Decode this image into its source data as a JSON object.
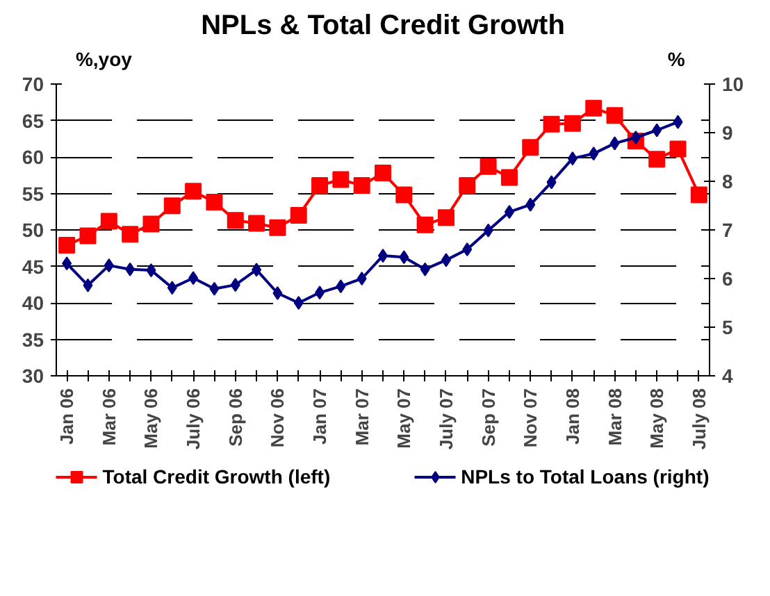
{
  "chart_data": {
    "type": "line",
    "title": "NPLs & Total Credit Growth",
    "ylabel": "%,yoy",
    "y2label": "%",
    "categories": [
      "Jan 06",
      null,
      "Mar 06",
      null,
      "May 06",
      null,
      "July 06",
      null,
      "Sep 06",
      null,
      "Nov 06",
      null,
      "Jan 07",
      null,
      "Mar 07",
      null,
      "May 07",
      null,
      "July 07",
      null,
      "Sep 07",
      null,
      "Nov 07",
      null,
      "Jan 08",
      null,
      "Mar 08",
      null,
      "May 08",
      null,
      "July 08"
    ],
    "series": [
      {
        "name": "Total Credit Growth (left)",
        "color": "#ff0000",
        "marker": "square",
        "values": [
          47.9,
          49.2,
          51.2,
          49.4,
          50.8,
          53.3,
          55.3,
          53.8,
          51.3,
          50.9,
          50.3,
          52.0,
          56.1,
          56.9,
          56.1,
          57.8,
          54.8,
          50.7,
          51.7,
          56.1,
          58.7,
          57.2,
          61.3,
          64.5,
          64.6,
          66.7,
          65.7,
          62.2,
          59.7,
          61.1,
          54.8
        ]
      },
      {
        "name": "NPLs to Total Loans (right)",
        "color": "#000080",
        "marker": "diamond",
        "axis": "y2",
        "values": [
          6.31,
          5.86,
          6.27,
          6.19,
          6.17,
          5.81,
          6.01,
          5.79,
          5.87,
          6.18,
          5.7,
          5.5,
          5.71,
          5.84,
          6.0,
          6.47,
          6.44,
          6.19,
          6.38,
          6.6,
          6.99,
          7.37,
          7.52,
          7.98,
          8.47,
          8.57,
          8.78,
          8.9,
          9.05,
          9.22,
          null
        ]
      }
    ],
    "ylim": [
      30,
      70
    ],
    "yticks": [
      30,
      35,
      40,
      45,
      50,
      55,
      60,
      65,
      70
    ],
    "y2lim": [
      4,
      10
    ],
    "y2ticks": [
      4,
      5,
      6,
      7,
      8,
      9,
      10
    ],
    "grid": "y",
    "legend": "bottom"
  }
}
